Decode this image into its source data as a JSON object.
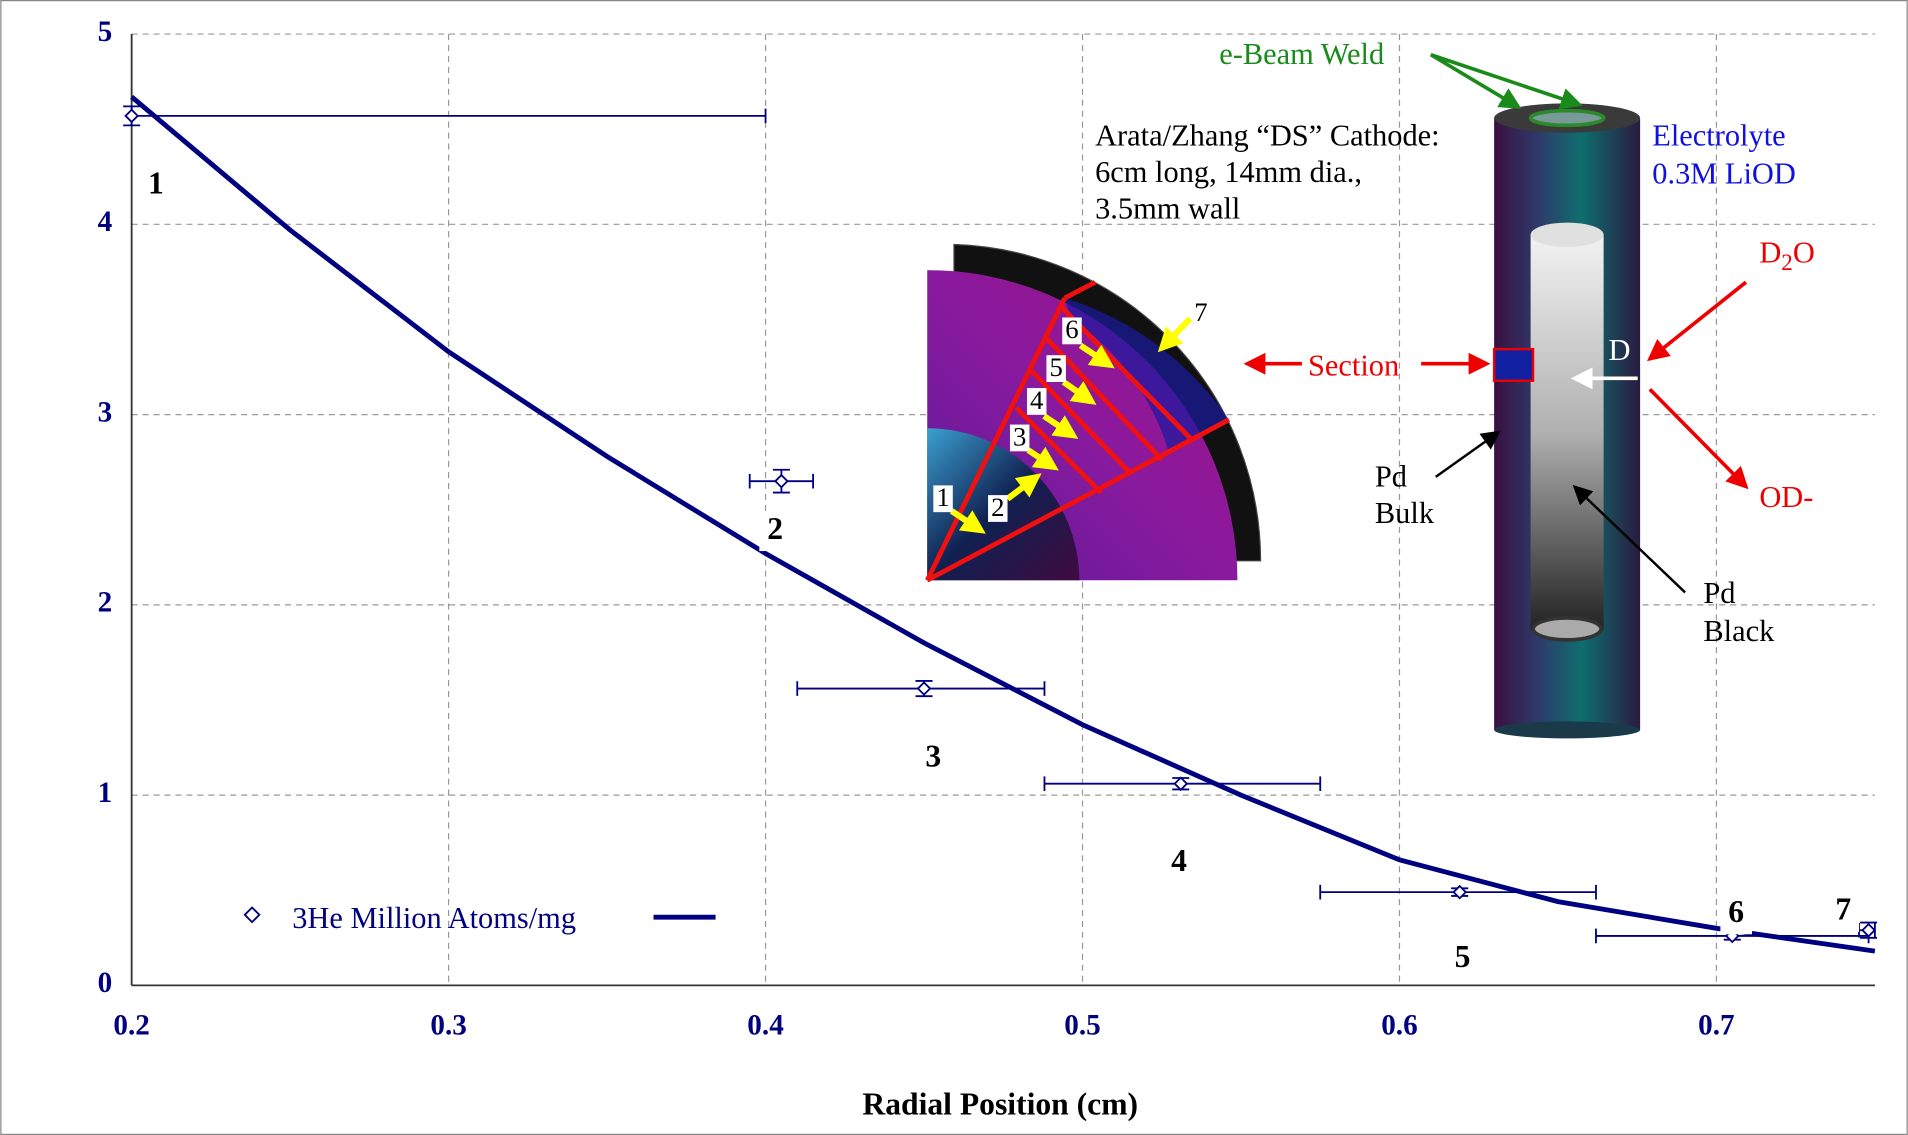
{
  "chart_data": {
    "type": "scatter",
    "xlabel": "Radial Position (cm)",
    "xlim": [
      0.2,
      0.75
    ],
    "xticks": [
      0.2,
      0.3,
      0.4,
      0.5,
      0.6,
      0.7
    ],
    "ylim": [
      0,
      5
    ],
    "yticks": [
      0,
      1,
      2,
      3,
      4,
      5
    ],
    "grid": true,
    "legend": "lower left",
    "series": [
      {
        "name": "3He Million Atoms/mg",
        "color": "#000080",
        "x": [
          0.2,
          0.405,
          0.45,
          0.531,
          0.619,
          0.705,
          0.748
        ],
        "values": [
          4.57,
          2.65,
          1.56,
          1.06,
          0.49,
          0.26,
          0.29
        ],
        "xmin": [
          0.2,
          0.395,
          0.41,
          0.488,
          0.575,
          0.662,
          0.745
        ],
        "xmax": [
          0.4,
          0.415,
          0.488,
          0.575,
          0.662,
          0.748,
          0.75
        ],
        "yerr": [
          0.05,
          0.06,
          0.04,
          0.03,
          0.02,
          0.02,
          0.04
        ]
      }
    ],
    "fit": {
      "color": "#000080",
      "x": [
        0.2,
        0.25,
        0.3,
        0.35,
        0.4,
        0.45,
        0.5,
        0.55,
        0.6,
        0.65,
        0.7,
        0.75
      ],
      "values": [
        4.67,
        3.97,
        3.33,
        2.78,
        2.27,
        1.8,
        1.37,
        1.0,
        0.66,
        0.44,
        0.3,
        0.18
      ]
    },
    "point_labels": [
      "1",
      "2",
      "3",
      "4",
      "5",
      "6",
      "7"
    ],
    "diagram": {
      "weld": "e-Beam Weld",
      "cathode": [
        "Arata/Zhang “DS” Cathode:",
        "6cm long, 14mm dia.,",
        "3.5mm wall"
      ],
      "electrolyte": [
        "Electrolyte",
        "0.3M LiOD"
      ],
      "d2o": [
        "D",
        "2",
        "O"
      ],
      "section": "Section",
      "d": "D",
      "od": "OD-",
      "pd_bulk": [
        "Pd",
        "Bulk"
      ],
      "pd_black": [
        "Pd",
        "Black"
      ],
      "sections": [
        "1",
        "2",
        "3",
        "4",
        "5",
        "6",
        "7"
      ]
    }
  }
}
